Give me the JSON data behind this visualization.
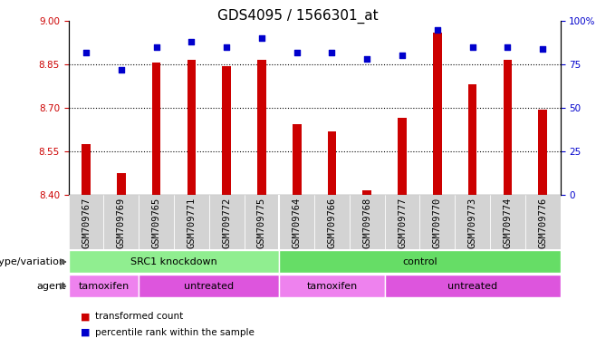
{
  "title": "GDS4095 / 1566301_at",
  "samples": [
    "GSM709767",
    "GSM709769",
    "GSM709765",
    "GSM709771",
    "GSM709772",
    "GSM709775",
    "GSM709764",
    "GSM709766",
    "GSM709768",
    "GSM709777",
    "GSM709770",
    "GSM709773",
    "GSM709774",
    "GSM709776"
  ],
  "red_values": [
    8.575,
    8.475,
    8.855,
    8.865,
    8.845,
    8.865,
    8.645,
    8.62,
    8.415,
    8.665,
    8.96,
    8.78,
    8.865,
    8.695
  ],
  "blue_values": [
    82,
    72,
    85,
    88,
    85,
    90,
    82,
    82,
    78,
    80,
    95,
    85,
    85,
    84
  ],
  "ylim_left": [
    8.4,
    9.0
  ],
  "ylim_right": [
    0,
    100
  ],
  "yticks_left": [
    8.4,
    8.55,
    8.7,
    8.85,
    9.0
  ],
  "yticks_right": [
    0,
    25,
    50,
    75,
    100
  ],
  "hlines": [
    8.55,
    8.7,
    8.85
  ],
  "bar_color": "#cc0000",
  "dot_color": "#0000cc",
  "background_color": "#ffffff",
  "xticklabel_bg": "#d3d3d3",
  "genotype_groups": [
    {
      "label": "SRC1 knockdown",
      "start": 0,
      "end": 6,
      "color": "#90ee90"
    },
    {
      "label": "control",
      "start": 6,
      "end": 14,
      "color": "#66dd66"
    }
  ],
  "agent_groups": [
    {
      "label": "tamoxifen",
      "start": 0,
      "end": 2,
      "color": "#ee82ee"
    },
    {
      "label": "untreated",
      "start": 2,
      "end": 6,
      "color": "#dd55dd"
    },
    {
      "label": "tamoxifen",
      "start": 6,
      "end": 9,
      "color": "#ee82ee"
    },
    {
      "label": "untreated",
      "start": 9,
      "end": 14,
      "color": "#dd55dd"
    }
  ],
  "legend_items": [
    {
      "label": "transformed count",
      "color": "#cc0000"
    },
    {
      "label": "percentile rank within the sample",
      "color": "#0000cc"
    }
  ],
  "ylabel_left_color": "#cc0000",
  "ylabel_right_color": "#0000cc",
  "title_fontsize": 11,
  "tick_fontsize": 7.5,
  "label_fontsize": 8,
  "bar_width": 0.25
}
